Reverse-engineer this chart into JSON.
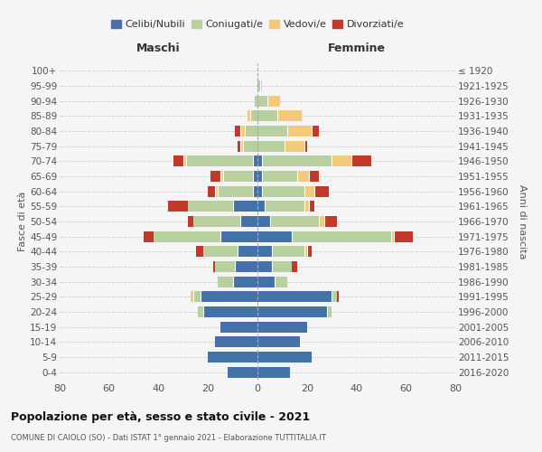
{
  "age_groups": [
    "100+",
    "95-99",
    "90-94",
    "85-89",
    "80-84",
    "75-79",
    "70-74",
    "65-69",
    "60-64",
    "55-59",
    "50-54",
    "45-49",
    "40-44",
    "35-39",
    "30-34",
    "25-29",
    "20-24",
    "15-19",
    "10-14",
    "5-9",
    "0-4"
  ],
  "birth_years": [
    "≤ 1920",
    "1921-1925",
    "1926-1930",
    "1931-1935",
    "1936-1940",
    "1941-1945",
    "1946-1950",
    "1951-1955",
    "1956-1960",
    "1961-1965",
    "1966-1970",
    "1971-1975",
    "1976-1980",
    "1981-1985",
    "1986-1990",
    "1991-1995",
    "1996-2000",
    "2001-2005",
    "2006-2010",
    "2011-2015",
    "2016-2020"
  ],
  "male_celibi": [
    0,
    0,
    0,
    0,
    0,
    0,
    2,
    2,
    2,
    10,
    7,
    15,
    8,
    9,
    10,
    23,
    22,
    15,
    17,
    20,
    12
  ],
  "male_coniugati": [
    0,
    0,
    1,
    3,
    5,
    6,
    27,
    12,
    14,
    18,
    19,
    27,
    14,
    8,
    6,
    3,
    2,
    0,
    0,
    0,
    0
  ],
  "male_vedovi": [
    0,
    0,
    0,
    1,
    2,
    1,
    1,
    1,
    1,
    0,
    0,
    0,
    0,
    0,
    0,
    1,
    0,
    0,
    0,
    0,
    0
  ],
  "male_divorziati": [
    0,
    0,
    0,
    0,
    2,
    1,
    4,
    4,
    3,
    8,
    2,
    4,
    3,
    1,
    0,
    0,
    0,
    0,
    0,
    0,
    0
  ],
  "fem_nubili": [
    0,
    0,
    0,
    0,
    0,
    0,
    2,
    2,
    2,
    3,
    5,
    14,
    6,
    6,
    7,
    30,
    28,
    20,
    17,
    22,
    13
  ],
  "fem_coniugate": [
    0,
    1,
    4,
    8,
    12,
    11,
    28,
    14,
    17,
    16,
    20,
    40,
    13,
    8,
    5,
    2,
    2,
    0,
    0,
    0,
    0
  ],
  "fem_vedove": [
    0,
    1,
    5,
    10,
    10,
    8,
    8,
    5,
    4,
    2,
    2,
    1,
    1,
    0,
    0,
    0,
    0,
    0,
    0,
    0,
    0
  ],
  "fem_divorziate": [
    0,
    0,
    0,
    0,
    3,
    1,
    8,
    4,
    6,
    2,
    5,
    8,
    2,
    2,
    0,
    1,
    0,
    0,
    0,
    0,
    0
  ],
  "color_celibi": "#4472a8",
  "color_coniugati": "#b8cfa0",
  "color_vedovi": "#f5c97a",
  "color_divorziati": "#c0392b",
  "xlim": 80,
  "title": "Popolazione per età, sesso e stato civile - 2021",
  "subtitle": "COMUNE DI CAIOLO (SO) - Dati ISTAT 1° gennaio 2021 - Elaborazione TUTTITALIA.IT",
  "ylabel_left": "Fasce di età",
  "ylabel_right": "Anni di nascita",
  "header_left": "Maschi",
  "header_right": "Femmine",
  "bg_color": "#f5f5f5",
  "grid_color": "#cccccc"
}
